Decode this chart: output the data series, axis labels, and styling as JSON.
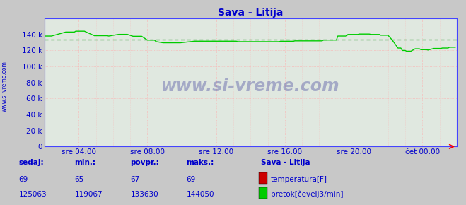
{
  "title": "Sava - Litija",
  "bg_color": "#c8c8c8",
  "plot_bg_color": "#e0e8e0",
  "grid_color": "#ffaaaa",
  "line_color_flow": "#00cc00",
  "line_color_temp": "#cc0000",
  "avg_line_color": "#008800",
  "title_color": "#0000cc",
  "tick_label_color": "#0000cc",
  "spine_color": "#4444ff",
  "ylabel_text": "www.si-vreme.com",
  "watermark": "www.si-vreme.com",
  "ylim": [
    0,
    160000
  ],
  "yticks": [
    0,
    20000,
    40000,
    60000,
    80000,
    100000,
    120000,
    140000
  ],
  "xtick_positions": [
    24,
    72,
    120,
    168,
    216,
    264
  ],
  "xtick_labels": [
    "sre 04:00",
    "sre 08:00",
    "sre 12:00",
    "sre 16:00",
    "sre 20:00",
    "čet 00:00"
  ],
  "avg_flow": 133630,
  "sedaj_label": "sedaj:",
  "min_label": "min.:",
  "povpr_label": "povpr.:",
  "maks_label": "maks.:",
  "station_label": "Sava - Litija",
  "temp_label": "temperatura[F]",
  "flow_label": "pretok[čevelj3/min]",
  "sedaj_temp": 69,
  "min_temp": 65,
  "povpr_temp": 67,
  "maks_temp": 69,
  "sedaj_flow": 125063,
  "min_flow": 119067,
  "povpr_flow": 133630,
  "maks_flow": 144050,
  "temp_color": "#cc0000",
  "flow_color": "#00cc00",
  "n_points": 288
}
